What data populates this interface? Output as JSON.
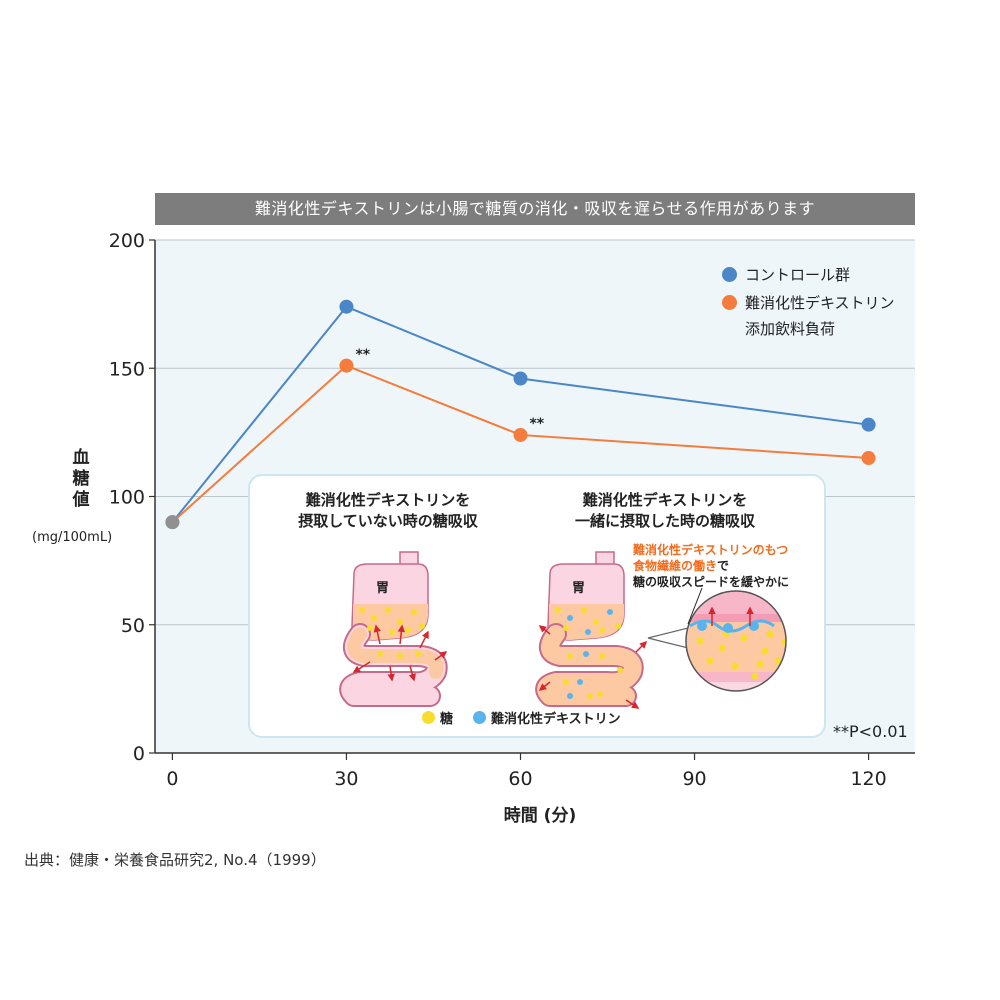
{
  "banner": "難消化性デキストリンは小腸で糖質の消化・吸収を遅らせる作用があります",
  "yaxis_title_chars": [
    "血",
    "糖",
    "値"
  ],
  "yaxis_unit": "(mg/100mL)",
  "xaxis_title": "時間 (分)",
  "pvalue_note": "**P<0.01",
  "source": "出典：健康・栄養食品研究2, No.4（1999）",
  "legend": {
    "control": "コントロール群",
    "dextrin_line1": "難消化性デキストリン",
    "dextrin_line2": "添加飲料負荷"
  },
  "significance_marks": [
    "**",
    "**"
  ],
  "colors": {
    "control": "#4a86c8",
    "dextrin": "#f47c3c",
    "baseline_point": "#909090",
    "plot_bg": "#eef6fa",
    "banner_bg": "#7d7d7d"
  },
  "inset": {
    "left_heading": [
      "難消化性デキストリンを",
      "摂取していない時の糖吸収"
    ],
    "right_heading": [
      "難消化性デキストリンを",
      "一緒に摂取した時の糖吸収"
    ],
    "stomach_label": "胃",
    "note_orange_1": "難消化性デキストリンのもつ",
    "note_orange_2": "食物繊維の働き",
    "note_black_2": "で",
    "note_black_3": "糖の吸収スピードを緩やかに",
    "legend_sugar": "糖",
    "legend_dextrin": "難消化性デキストリン",
    "sugar_color": "#f7dd2e",
    "dextrin_color": "#5ab4ec"
  },
  "chart_data": {
    "type": "line",
    "title": "難消化性デキストリンは小腸で糖質の消化・吸収を遅らせる作用があります",
    "xlabel": "時間 (分)",
    "ylabel": "血糖値 (mg/100mL)",
    "x": [
      0,
      30,
      60,
      120
    ],
    "xticks": [
      0,
      30,
      60,
      90,
      120
    ],
    "yticks": [
      0,
      50,
      100,
      150,
      200
    ],
    "xlim": [
      -3,
      128
    ],
    "ylim": [
      0,
      200
    ],
    "grid": "horizontal",
    "legend_position": "top-right",
    "series": [
      {
        "name": "コントロール群",
        "values": [
          90,
          174,
          146,
          128
        ],
        "color": "#4a86c8"
      },
      {
        "name": "難消化性デキストリン添加飲料負荷",
        "values": [
          90,
          151,
          124,
          115
        ],
        "color": "#f47c3c"
      }
    ],
    "annotations": [
      {
        "x": 30,
        "series": 1,
        "text": "**"
      },
      {
        "x": 60,
        "series": 1,
        "text": "**"
      }
    ]
  }
}
